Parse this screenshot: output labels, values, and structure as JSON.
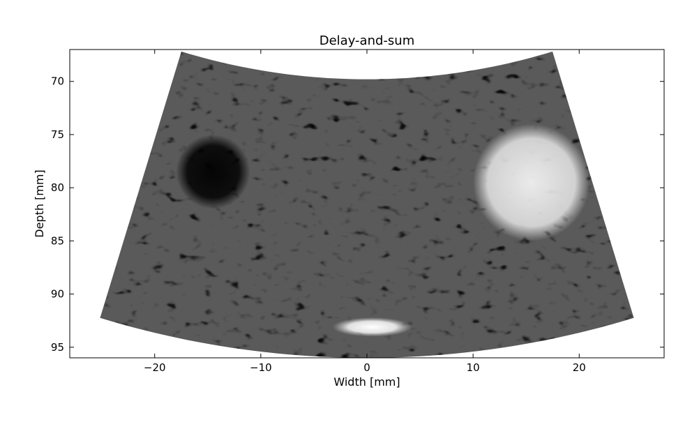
{
  "chart_data": {
    "type": "heatmap",
    "title": "Delay-and-sum",
    "xlabel": "Width [mm]",
    "ylabel": "Depth [mm]",
    "xlim": [
      -28,
      28
    ],
    "ylim": [
      96,
      67
    ],
    "y_inverted": true,
    "xticks": [
      -20,
      -10,
      0,
      10,
      20
    ],
    "yticks": [
      70,
      75,
      80,
      85,
      90,
      95
    ],
    "xtick_labels": [
      "−20",
      "−10",
      "0",
      "10",
      "20"
    ],
    "ytick_labels": [
      "70",
      "75",
      "80",
      "85",
      "90",
      "95"
    ],
    "colormap": "gray",
    "grid": false,
    "legend": "none",
    "sector": {
      "apex": [
        0,
        10
      ],
      "min_depth": 69.8,
      "max_depth": 96,
      "half_angle_deg": 17
    },
    "features": [
      {
        "kind": "anechoic-cyst",
        "center": [
          -14.5,
          78.5
        ],
        "radius": 3.5,
        "level": 0.05
      },
      {
        "kind": "hyperechoic-inclusion",
        "center": [
          15.5,
          79.5
        ],
        "radius": 5.5,
        "level": 0.85
      },
      {
        "kind": "point-reflector",
        "center": [
          0.5,
          93.1
        ],
        "width": 7.5,
        "height": 1.8,
        "level": 1.0
      }
    ]
  },
  "colors": {
    "background": "#ffffff",
    "axes": "#000000",
    "image_base": "#5a5a5a"
  }
}
